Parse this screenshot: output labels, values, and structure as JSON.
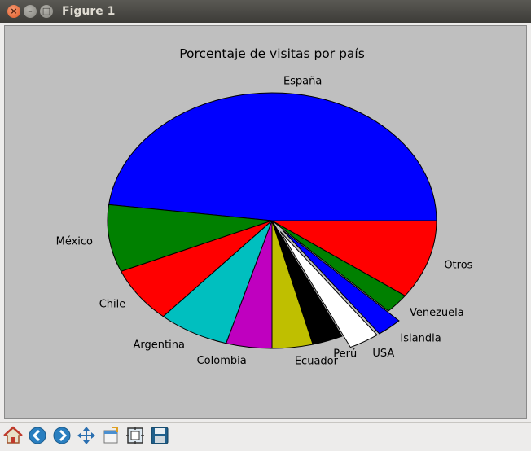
{
  "window": {
    "title": "Figure 1"
  },
  "chart_data": {
    "type": "pie",
    "title": "Porcentaje de visitas por país",
    "slices": [
      {
        "label": "España",
        "value": 48.0,
        "color": "#0000ff",
        "explode": 0
      },
      {
        "label": "México",
        "value": 8.5,
        "color": "#008000",
        "explode": 0
      },
      {
        "label": "Chile",
        "value": 7.0,
        "color": "#ff0000",
        "explode": 0
      },
      {
        "label": "Argentina",
        "value": 7.0,
        "color": "#00bfbf",
        "explode": 0
      },
      {
        "label": "Colombia",
        "value": 4.5,
        "color": "#bf00bf",
        "explode": 0
      },
      {
        "label": "Ecuador",
        "value": 4.0,
        "color": "#bfbf00",
        "explode": 0
      },
      {
        "label": "Perú",
        "value": 3.0,
        "color": "#000000",
        "explode": 0
      },
      {
        "label": "USA",
        "value": 3.0,
        "color": "#ffffff",
        "explode": 0.1
      },
      {
        "label": "Islandia",
        "value": 2.5,
        "color": "#0000ff",
        "explode": 0.1
      },
      {
        "label": "Venezuela",
        "value": 2.5,
        "color": "#008000",
        "explode": 0
      },
      {
        "label": "Otros",
        "value": 10.0,
        "color": "#ff0000",
        "explode": 0
      }
    ],
    "start_angle_deg": 0,
    "direction": "counterclockwise"
  },
  "toolbar": {
    "buttons": [
      {
        "name": "home-button",
        "icon": "home-icon"
      },
      {
        "name": "back-button",
        "icon": "arrow-left-icon"
      },
      {
        "name": "forward-button",
        "icon": "arrow-right-icon"
      },
      {
        "name": "pan-button",
        "icon": "move-icon"
      },
      {
        "name": "zoom-button",
        "icon": "zoom-rect-icon"
      },
      {
        "name": "subplots-button",
        "icon": "subplots-icon"
      },
      {
        "name": "save-button",
        "icon": "save-icon"
      }
    ]
  }
}
